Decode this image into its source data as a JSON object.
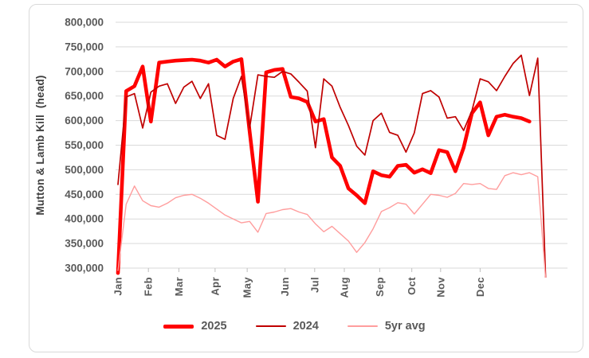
{
  "chart_data": {
    "type": "line",
    "title": "",
    "y_axis": {
      "title": "Mutton & Lamb Kill  (head)",
      "min": 300000,
      "max": 800000,
      "step": 50000,
      "tick_labels": [
        "300,000",
        "350,000",
        "400,000",
        "450,000",
        "500,000",
        "550,000",
        "600,000",
        "650,000",
        "700,000",
        "750,000",
        "800,000"
      ]
    },
    "x_axis": {
      "unit": "week-of-year",
      "weeks": 53,
      "month_labels": [
        "Jan",
        "Feb",
        "Mar",
        "Apr",
        "May",
        "Jun",
        "Jul",
        "Aug",
        "Sep",
        "Oct",
        "Nov",
        "Dec"
      ],
      "month_week_positions": [
        1,
        4.7,
        8.4,
        12.8,
        16.7,
        21.3,
        24.9,
        28.5,
        32.8,
        36.7,
        40.2,
        45
      ]
    },
    "grid": "horizontal",
    "legend_position": "bottom",
    "colors": {
      "gridline": "#D9D9D9",
      "axis_text": "#595959",
      "border": "#D9D9D9"
    },
    "series": [
      {
        "name": "2025",
        "color": "#FF0000",
        "style": "thick",
        "values": [
          290000,
          660000,
          670000,
          710000,
          598000,
          718000,
          720000,
          722000,
          723000,
          724000,
          722000,
          718000,
          724000,
          710000,
          720000,
          725000,
          578000,
          435000,
          698000,
          703000,
          705000,
          648000,
          645000,
          638000,
          598000,
          603000,
          525000,
          508000,
          462000,
          448000,
          432000,
          497000,
          489000,
          486000,
          508000,
          510000,
          494000,
          501000,
          493000,
          540000,
          536000,
          497000,
          545000,
          615000,
          637000,
          570000,
          608000,
          612000,
          608000,
          605000,
          598000
        ]
      },
      {
        "name": "2024",
        "color": "#C00000",
        "style": "thin",
        "values": [
          470000,
          648000,
          655000,
          585000,
          658000,
          670000,
          675000,
          635000,
          668000,
          680000,
          645000,
          675000,
          570000,
          562000,
          645000,
          690000,
          585000,
          693000,
          690000,
          688000,
          700000,
          695000,
          678000,
          660000,
          545000,
          685000,
          670000,
          627000,
          590000,
          548000,
          530000,
          600000,
          615000,
          576000,
          570000,
          536000,
          575000,
          655000,
          661000,
          648000,
          605000,
          608000,
          580000,
          620000,
          685000,
          679000,
          661000,
          690000,
          716000,
          733000,
          651000,
          727000,
          262000
        ]
      },
      {
        "name": "5yr avg",
        "color": "#FF9D9D",
        "style": "thin",
        "values": [
          295000,
          430000,
          467000,
          437000,
          427000,
          424000,
          432000,
          443000,
          448000,
          450000,
          442000,
          432000,
          420000,
          408000,
          400000,
          392000,
          395000,
          373000,
          411000,
          414000,
          419000,
          421000,
          414000,
          409000,
          390000,
          374000,
          385000,
          370000,
          355000,
          332000,
          352000,
          380000,
          415000,
          423000,
          433000,
          430000,
          410000,
          430000,
          450000,
          448000,
          444000,
          452000,
          472000,
          470000,
          472000,
          462000,
          460000,
          488000,
          494000,
          490000,
          494000,
          486000,
          270000
        ]
      }
    ],
    "legend": {
      "items": [
        {
          "label": "2025",
          "color": "#FF0000"
        },
        {
          "label": "2024",
          "color": "#C00000"
        },
        {
          "label": "5yr avg",
          "color": "#FF9D9D"
        }
      ]
    }
  }
}
